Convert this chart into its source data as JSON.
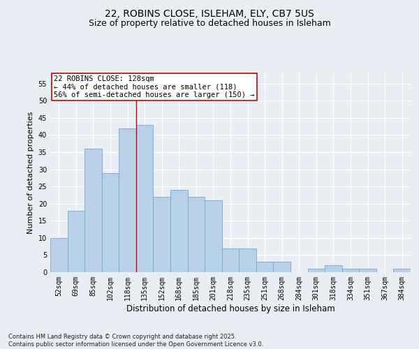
{
  "title1": "22, ROBINS CLOSE, ISLEHAM, ELY, CB7 5US",
  "title2": "Size of property relative to detached houses in Isleham",
  "xlabel": "Distribution of detached houses by size in Isleham",
  "ylabel": "Number of detached properties",
  "categories": [
    "52sqm",
    "69sqm",
    "85sqm",
    "102sqm",
    "118sqm",
    "135sqm",
    "152sqm",
    "168sqm",
    "185sqm",
    "201sqm",
    "218sqm",
    "235sqm",
    "251sqm",
    "268sqm",
    "284sqm",
    "301sqm",
    "318sqm",
    "334sqm",
    "351sqm",
    "367sqm",
    "384sqm"
  ],
  "values": [
    10,
    18,
    36,
    29,
    42,
    43,
    22,
    24,
    22,
    21,
    7,
    7,
    3,
    3,
    0,
    1,
    2,
    1,
    1,
    0,
    1
  ],
  "bar_color": "#b8d0e8",
  "bar_edge_color": "#6699cc",
  "annotation_text_line1": "22 ROBINS CLOSE: 128sqm",
  "annotation_text_line2": "← 44% of detached houses are smaller (118)",
  "annotation_text_line3": "56% of semi-detached houses are larger (150) →",
  "annotation_box_color": "#ffffff",
  "annotation_box_edge": "#cc0000",
  "vline_color": "#cc0000",
  "vline_x_index": 4.5,
  "background_color": "#e8eef4",
  "grid_color": "#ffffff",
  "ylim": [
    0,
    58
  ],
  "yticks": [
    0,
    5,
    10,
    15,
    20,
    25,
    30,
    35,
    40,
    45,
    50,
    55
  ],
  "footnote": "Contains HM Land Registry data © Crown copyright and database right 2025.\nContains public sector information licensed under the Open Government Licence v3.0.",
  "title_fontsize": 10,
  "subtitle_fontsize": 9,
  "tick_fontsize": 7,
  "ylabel_fontsize": 8,
  "xlabel_fontsize": 8.5,
  "footnote_fontsize": 6,
  "annotation_fontsize": 7.5
}
